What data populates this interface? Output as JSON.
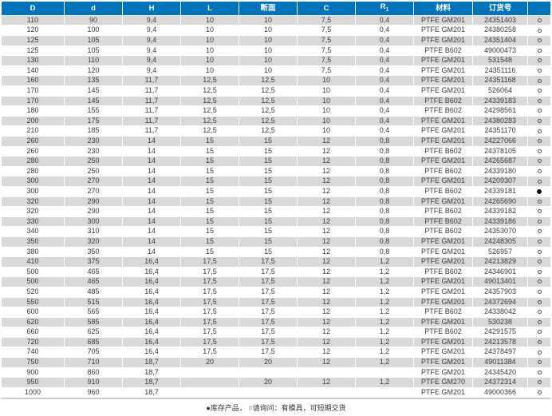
{
  "colors": {
    "header_bg": "#0173b8",
    "header_text": "#ffffff",
    "row_alt_bg": "#d8dada",
    "row_bg": "#ffffff",
    "text": "#3a3a3a"
  },
  "table": {
    "columns": [
      {
        "label": "D"
      },
      {
        "label": "d"
      },
      {
        "label": "H"
      },
      {
        "label": "L"
      },
      {
        "label": "断面"
      },
      {
        "label": "C"
      },
      {
        "label": "R",
        "sub": "1"
      },
      {
        "label": "材料"
      },
      {
        "label": "订货号"
      },
      {
        "label": ""
      }
    ],
    "rows": [
      {
        "cells": [
          "110",
          "90",
          "9,4",
          "10",
          "10",
          "7,5",
          "0,4",
          "PTFE GM201",
          "24351403"
        ],
        "stock": "○"
      },
      {
        "cells": [
          "120",
          "100",
          "9,4",
          "10",
          "10",
          "7,5",
          "0,4",
          "PTFE GM201",
          "24380258"
        ],
        "stock": "○"
      },
      {
        "cells": [
          "125",
          "105",
          "9,4",
          "10",
          "10",
          "7,5",
          "0,4",
          "PTFE GM201",
          "24351404"
        ],
        "stock": "○"
      },
      {
        "cells": [
          "125",
          "105",
          "9,4",
          "10",
          "10",
          "7,5",
          "0,4",
          "PTFE B602",
          "49000473"
        ],
        "stock": "○"
      },
      {
        "cells": [
          "130",
          "110",
          "9,4",
          "10",
          "10",
          "7,5",
          "0,4",
          "PTFE GM201",
          "531548"
        ],
        "stock": "○"
      },
      {
        "cells": [
          "140",
          "120",
          "9,4",
          "10",
          "10",
          "7,5",
          "0,4",
          "PTFE GM201",
          "24351116"
        ],
        "stock": "○"
      },
      {
        "cells": [
          "160",
          "135",
          "11,7",
          "12,5",
          "12,5",
          "10",
          "0,4",
          "PTFE GM201",
          "24351168"
        ],
        "stock": "○"
      },
      {
        "cells": [
          "170",
          "145",
          "11,7",
          "12,5",
          "12,5",
          "10",
          "0,4",
          "PTFE GM201",
          "526064"
        ],
        "stock": "○"
      },
      {
        "cells": [
          "170",
          "145",
          "11,7",
          "12,5",
          "12,5",
          "10",
          "0,4",
          "PTFE B602",
          "24339183"
        ],
        "stock": "○"
      },
      {
        "cells": [
          "180",
          "155",
          "11,7",
          "12,5",
          "12,5",
          "10",
          "0,4",
          "PTFE B602",
          "24298561"
        ],
        "stock": "○"
      },
      {
        "cells": [
          "200",
          "175",
          "11,7",
          "12,5",
          "12,5",
          "10",
          "0,4",
          "PTFE GM201",
          "24380283"
        ],
        "stock": "○"
      },
      {
        "cells": [
          "210",
          "185",
          "11,7",
          "12,5",
          "12,5",
          "10",
          "0,4",
          "PTFE GM201",
          "24351170"
        ],
        "stock": "○"
      },
      {
        "cells": [
          "260",
          "230",
          "14",
          "15",
          "15",
          "12",
          "0,8",
          "PTFE GM201",
          "24227066"
        ],
        "stock": "○"
      },
      {
        "cells": [
          "260",
          "230",
          "14",
          "15",
          "15",
          "12",
          "0,8",
          "PTFE B602",
          "24378105"
        ],
        "stock": "○"
      },
      {
        "cells": [
          "280",
          "250",
          "14",
          "15",
          "15",
          "12",
          "0,8",
          "PTFE GM201",
          "24265687"
        ],
        "stock": "○"
      },
      {
        "cells": [
          "280",
          "250",
          "14",
          "15",
          "15",
          "12",
          "0,8",
          "PTFE B602",
          "24339180"
        ],
        "stock": "○"
      },
      {
        "cells": [
          "300",
          "270",
          "14",
          "15",
          "15",
          "12",
          "0,8",
          "PTFE GM201",
          "24209307"
        ],
        "stock": "○"
      },
      {
        "cells": [
          "300",
          "270",
          "14",
          "15",
          "15",
          "12",
          "0,8",
          "PTFE B602",
          "24339181"
        ],
        "stock": "●"
      },
      {
        "cells": [
          "320",
          "290",
          "14",
          "15",
          "15",
          "12",
          "0,8",
          "PTFE GM201",
          "24265690"
        ],
        "stock": "○"
      },
      {
        "cells": [
          "320",
          "290",
          "14",
          "15",
          "15",
          "12",
          "0,8",
          "PTFE B602",
          "24339182"
        ],
        "stock": "○"
      },
      {
        "cells": [
          "330",
          "300",
          "14",
          "15",
          "15",
          "12",
          "0,8",
          "PTFE B602",
          "24339186"
        ],
        "stock": "○"
      },
      {
        "cells": [
          "340",
          "310",
          "14",
          "15",
          "15",
          "12",
          "0,8",
          "PTFE B602",
          "24353070"
        ],
        "stock": "○"
      },
      {
        "cells": [
          "350",
          "320",
          "14",
          "15",
          "15",
          "12",
          "0,8",
          "PTFE GM201",
          "24248305"
        ],
        "stock": "○"
      },
      {
        "cells": [
          "380",
          "350",
          "14",
          "15",
          "15",
          "12",
          "0,8",
          "PTFE GM201",
          "526957"
        ],
        "stock": "○"
      },
      {
        "cells": [
          "410",
          "375",
          "16,4",
          "17,5",
          "17,5",
          "12",
          "1,2",
          "PTFE GM201",
          "24213829"
        ],
        "stock": "○"
      },
      {
        "cells": [
          "500",
          "465",
          "16,4",
          "17,5",
          "17,5",
          "12",
          "1,2",
          "PTFE B602",
          "24346901"
        ],
        "stock": "○"
      },
      {
        "cells": [
          "500",
          "465",
          "16,4",
          "17,5",
          "17,5",
          "12",
          "1,2",
          "PTFE GM201",
          "49013401"
        ],
        "stock": "○"
      },
      {
        "cells": [
          "520",
          "485",
          "16,4",
          "17,5",
          "17,5",
          "12",
          "1,2",
          "PTFE GM201",
          "24357903"
        ],
        "stock": "○"
      },
      {
        "cells": [
          "550",
          "515",
          "16,4",
          "17,5",
          "17,5",
          "12",
          "1,2",
          "PTFE GM201",
          "24372694"
        ],
        "stock": "○"
      },
      {
        "cells": [
          "600",
          "565",
          "16,4",
          "17,5",
          "17,5",
          "12",
          "1,2",
          "PTFE B602",
          "24338042"
        ],
        "stock": "○"
      },
      {
        "cells": [
          "620",
          "585",
          "16,4",
          "17,5",
          "17,5",
          "12",
          "1,2",
          "PTFE GM201",
          "530238"
        ],
        "stock": "○"
      },
      {
        "cells": [
          "660",
          "625",
          "16,4",
          "17,5",
          "17,5",
          "12",
          "1,2",
          "PTFE B602",
          "24291575"
        ],
        "stock": "○"
      },
      {
        "cells": [
          "720",
          "685",
          "16,4",
          "17,5",
          "17,5",
          "12",
          "1,2",
          "PTFE GM201",
          "24213578"
        ],
        "stock": "○"
      },
      {
        "cells": [
          "740",
          "705",
          "16,4",
          "17,5",
          "17,5",
          "12",
          "1,2",
          "PTFE GM201",
          "24378497"
        ],
        "stock": "○"
      },
      {
        "cells": [
          "750",
          "710",
          "18,7",
          "20",
          "20",
          "12",
          "1,2",
          "PTFE GM201",
          "49011384"
        ],
        "stock": "○"
      },
      {
        "cells": [
          "900",
          "860",
          "18,7",
          "",
          "",
          "",
          "",
          "PTFE GM201",
          "24345420"
        ],
        "stock": "○"
      },
      {
        "cells": [
          "950",
          "910",
          "18,7",
          "",
          "20",
          "12",
          "1,2",
          "PTFE GM270",
          "24372314"
        ],
        "stock": "○"
      },
      {
        "cells": [
          "1000",
          "960",
          "18,7",
          "",
          "",
          "",
          "",
          "PTFE GM201",
          "49000366"
        ],
        "stock": "○"
      }
    ]
  },
  "legend": {
    "text": "●库存产品， ○请询问：有模具，可短期交货"
  }
}
